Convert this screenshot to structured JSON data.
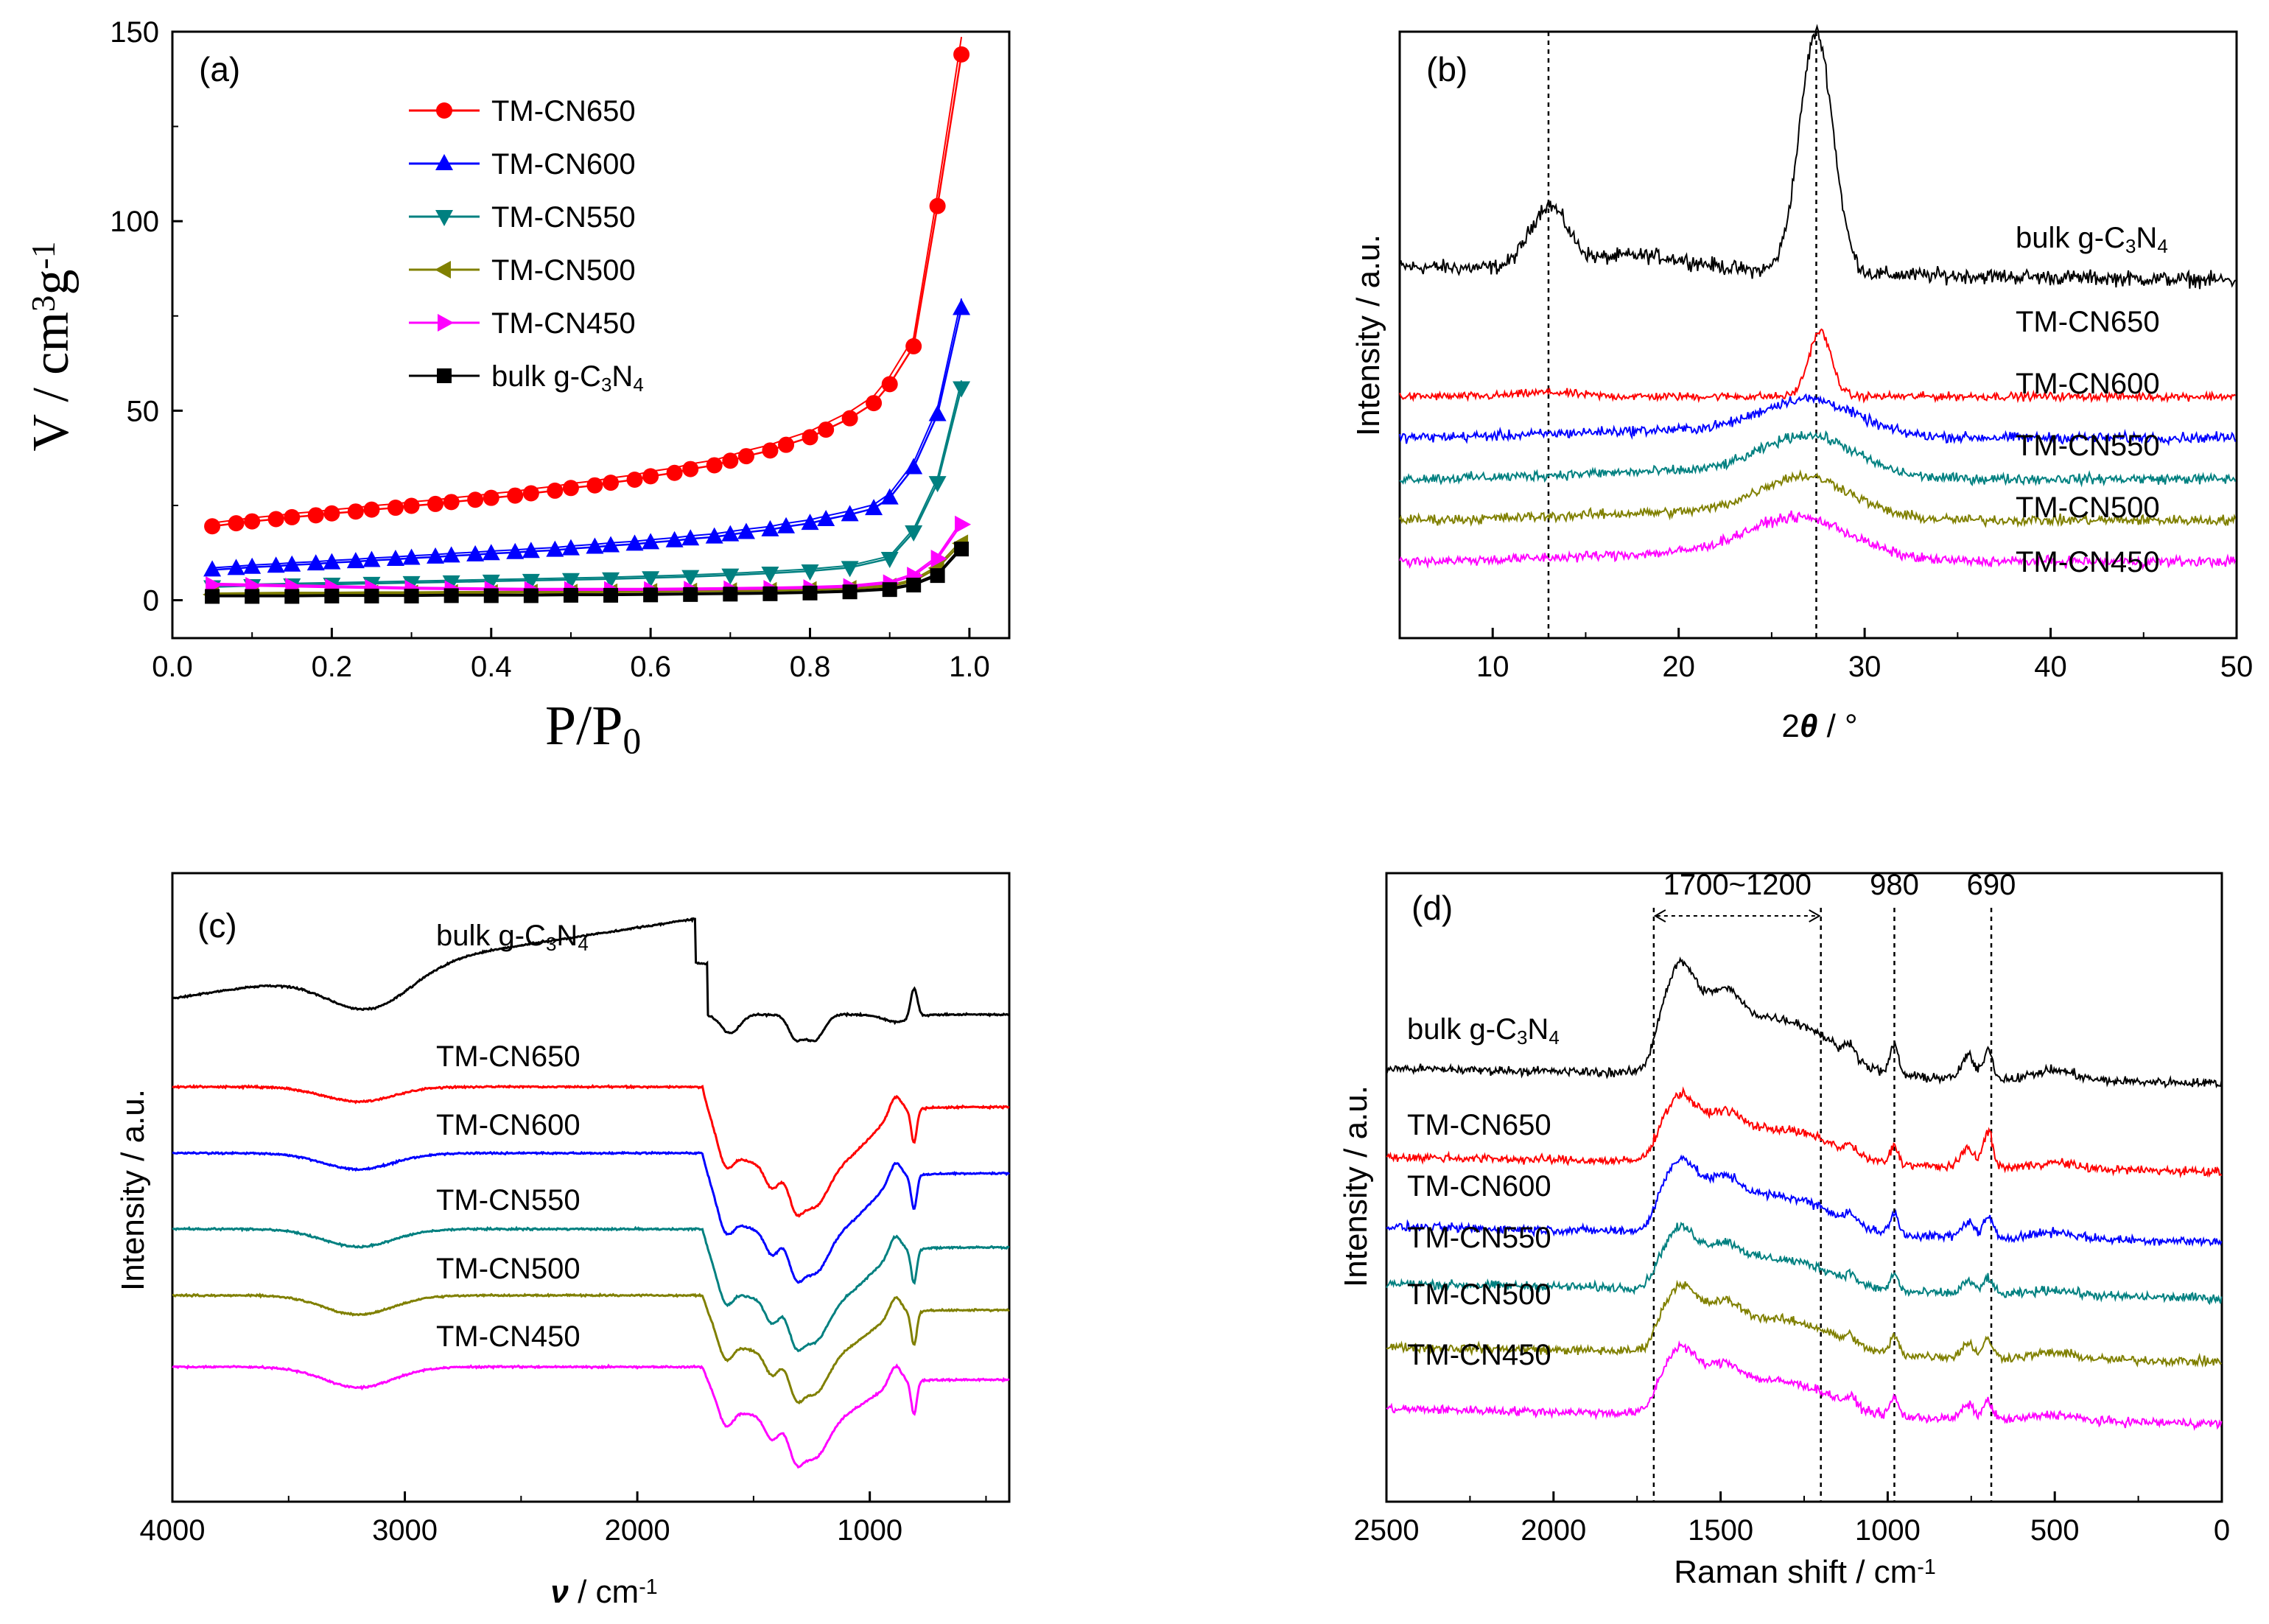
{
  "colors": {
    "TM-CN650": "#ff0000",
    "TM-CN600": "#0000ff",
    "TM-CN550": "#008080",
    "TM-CN500": "#808000",
    "TM-CN450": "#ff00ff",
    "bulk": "#000000"
  },
  "chart_data": [
    {
      "panel": "a",
      "label": "(a)",
      "type": "line",
      "xlabel": "P/P",
      "xlabel_sub": "0",
      "ylabel": "V / cm",
      "ylabel_sup1": "3",
      "ylabel_mid": "g",
      "ylabel_sup2": "-1",
      "xlim": [
        0.0,
        1.05
      ],
      "ylim": [
        -10,
        150
      ],
      "xticks": [
        "0.0",
        "0.2",
        "0.4",
        "0.6",
        "0.8",
        "1.0"
      ],
      "yticks": [
        "0",
        "50",
        "100",
        "150"
      ],
      "legend_position": "top-center",
      "series": [
        {
          "name": "TM-CN650",
          "marker": "circle",
          "x": [
            0.05,
            0.08,
            0.1,
            0.13,
            0.15,
            0.18,
            0.2,
            0.23,
            0.25,
            0.28,
            0.3,
            0.33,
            0.35,
            0.38,
            0.4,
            0.43,
            0.45,
            0.48,
            0.5,
            0.53,
            0.55,
            0.58,
            0.6,
            0.63,
            0.65,
            0.68,
            0.7,
            0.72,
            0.75,
            0.77,
            0.8,
            0.82,
            0.85,
            0.88,
            0.9,
            0.93,
            0.96,
            0.99
          ],
          "y": [
            19.5,
            20.3,
            20.8,
            21.4,
            21.9,
            22.4,
            22.9,
            23.4,
            23.9,
            24.4,
            24.9,
            25.4,
            25.9,
            26.5,
            27,
            27.6,
            28.2,
            28.9,
            29.6,
            30.3,
            31,
            31.8,
            32.7,
            33.6,
            34.6,
            35.6,
            36.8,
            38,
            39.5,
            41,
            43,
            45,
            48,
            52,
            57,
            67,
            104,
            144
          ]
        },
        {
          "name": "TM-CN600",
          "marker": "triangle-up",
          "x": [
            0.05,
            0.08,
            0.1,
            0.13,
            0.15,
            0.18,
            0.2,
            0.23,
            0.25,
            0.28,
            0.3,
            0.33,
            0.35,
            0.38,
            0.4,
            0.43,
            0.45,
            0.48,
            0.5,
            0.53,
            0.55,
            0.58,
            0.6,
            0.63,
            0.65,
            0.68,
            0.7,
            0.72,
            0.75,
            0.77,
            0.8,
            0.82,
            0.85,
            0.88,
            0.9,
            0.93,
            0.96,
            0.99
          ],
          "y": [
            8,
            8.4,
            8.7,
            9,
            9.3,
            9.6,
            9.9,
            10.2,
            10.5,
            10.8,
            11.1,
            11.4,
            11.7,
            12,
            12.3,
            12.6,
            12.9,
            13.2,
            13.6,
            14,
            14.4,
            14.8,
            15.2,
            15.7,
            16.2,
            16.7,
            17.3,
            17.9,
            18.6,
            19.4,
            20.3,
            21.3,
            22.6,
            24.2,
            27,
            35,
            49,
            77
          ]
        },
        {
          "name": "TM-CN550",
          "marker": "triangle-down",
          "x": [
            0.05,
            0.1,
            0.15,
            0.2,
            0.25,
            0.3,
            0.35,
            0.4,
            0.45,
            0.5,
            0.55,
            0.6,
            0.65,
            0.7,
            0.75,
            0.8,
            0.85,
            0.9,
            0.93,
            0.96,
            0.99
          ],
          "y": [
            3.5,
            3.8,
            4,
            4.2,
            4.4,
            4.6,
            4.8,
            5,
            5.2,
            5.4,
            5.6,
            5.9,
            6.2,
            6.6,
            7.1,
            7.7,
            8.6,
            11,
            18,
            31,
            56
          ]
        },
        {
          "name": "TM-CN500",
          "marker": "triangle-left",
          "x": [
            0.05,
            0.1,
            0.15,
            0.2,
            0.25,
            0.3,
            0.35,
            0.4,
            0.45,
            0.5,
            0.55,
            0.6,
            0.65,
            0.7,
            0.75,
            0.8,
            0.85,
            0.9,
            0.93,
            0.96,
            0.99
          ],
          "y": [
            1.5,
            1.6,
            1.7,
            1.7,
            1.8,
            1.8,
            1.9,
            1.9,
            2,
            2,
            2.1,
            2.2,
            2.3,
            2.4,
            2.5,
            2.7,
            3,
            3.6,
            5,
            8.5,
            15
          ]
        },
        {
          "name": "TM-CN450",
          "marker": "triangle-right",
          "x": [
            0.05,
            0.1,
            0.15,
            0.2,
            0.25,
            0.3,
            0.35,
            0.4,
            0.45,
            0.5,
            0.55,
            0.6,
            0.65,
            0.7,
            0.75,
            0.8,
            0.85,
            0.9,
            0.93,
            0.96,
            0.99
          ],
          "y": [
            4,
            3.8,
            3.6,
            3.4,
            3.2,
            3,
            2.9,
            2.8,
            2.7,
            2.7,
            2.7,
            2.7,
            2.8,
            2.9,
            3,
            3.2,
            3.5,
            4.5,
            6.5,
            11,
            20
          ]
        },
        {
          "name": "bulk g-C₃N₄",
          "legend_main": "bulk g-C",
          "legend_sub1": "3",
          "legend_mid": "N",
          "legend_sub2": "4",
          "marker": "square",
          "x": [
            0.05,
            0.1,
            0.15,
            0.2,
            0.25,
            0.3,
            0.35,
            0.4,
            0.45,
            0.5,
            0.55,
            0.6,
            0.65,
            0.7,
            0.75,
            0.8,
            0.85,
            0.9,
            0.93,
            0.96,
            0.99
          ],
          "y": [
            1,
            1,
            1,
            1.1,
            1.1,
            1.1,
            1.2,
            1.2,
            1.2,
            1.3,
            1.3,
            1.4,
            1.5,
            1.6,
            1.7,
            1.9,
            2.2,
            2.8,
            4,
            6.5,
            13.5
          ]
        }
      ]
    },
    {
      "panel": "b",
      "label": "(b)",
      "type": "line",
      "xlabel": "2θ / °",
      "ylabel": "Intensity / a.u.",
      "xlim": [
        5,
        50
      ],
      "xticks": [
        "10",
        "20",
        "30",
        "40",
        "50"
      ],
      "reference_lines_x": [
        13.0,
        27.4
      ],
      "series": [
        {
          "name": "bulk g-C₃N₄",
          "label_main": "bulk g-C",
          "label_sub1": "3",
          "label_mid": "N",
          "label_sub2": "4",
          "baseline": 6.0,
          "peaks": [
            [
              13.0,
              1.2,
              1.0
            ],
            [
              27.4,
              4.8,
              0.9
            ],
            [
              18,
              0.3,
              3
            ]
          ],
          "noise": 0.15
        },
        {
          "name": "TM-CN650",
          "baseline": 5.0,
          "peaks": [
            [
              27.6,
              1.3,
              0.6
            ],
            [
              13.0,
              0.08,
              1.5
            ]
          ],
          "noise": 0.08
        },
        {
          "name": "TM-CN600",
          "baseline": 4.0,
          "peaks": [
            [
              27.0,
              0.7,
              2.5
            ],
            [
              20,
              0.15,
              6
            ]
          ],
          "noise": 0.1
        },
        {
          "name": "TM-CN550",
          "baseline": 3.0,
          "peaks": [
            [
              27.0,
              0.8,
              2.5
            ],
            [
              20,
              0.15,
              6
            ]
          ],
          "noise": 0.1
        },
        {
          "name": "TM-CN500",
          "baseline": 2.0,
          "peaks": [
            [
              26.8,
              0.8,
              2.5
            ],
            [
              20,
              0.15,
              6
            ]
          ],
          "noise": 0.1
        },
        {
          "name": "TM-CN450",
          "baseline": 1.0,
          "peaks": [
            [
              26.5,
              0.8,
              2.8
            ],
            [
              20,
              0.15,
              6
            ]
          ],
          "noise": 0.1
        }
      ]
    },
    {
      "panel": "c",
      "label": "(c)",
      "type": "line",
      "xlabel": "ν",
      "xlabel_unit": " / cm",
      "xlabel_sup": "-1",
      "ylabel": "Intensity / a.u.",
      "xlim": [
        4000,
        400
      ],
      "xticks": [
        "4000",
        "3000",
        "2000",
        "1000"
      ],
      "series": [
        {
          "name": "bulk g-C₃N₄",
          "label_main": "bulk g-C",
          "label_sub1": "3",
          "label_mid": "N",
          "label_sub2": "4",
          "baseline": 5.6
        },
        {
          "name": "TM-CN650",
          "baseline": 4.4
        },
        {
          "name": "TM-CN600",
          "baseline": 3.4
        },
        {
          "name": "TM-CN550",
          "baseline": 2.3
        },
        {
          "name": "TM-CN500",
          "baseline": 1.3
        },
        {
          "name": "TM-CN450",
          "baseline": 0.3
        }
      ]
    },
    {
      "panel": "d",
      "label": "(d)",
      "type": "line",
      "xlabel": "Raman shift / cm",
      "xlabel_sup": "-1",
      "ylabel": "Intensity / a.u.",
      "xlim": [
        2500,
        0
      ],
      "xticks": [
        "2500",
        "2000",
        "1500",
        "1000",
        "500",
        "0"
      ],
      "reference_lines_x": [
        1700,
        1200,
        980,
        690
      ],
      "annotations": [
        "1700~1200",
        "980",
        "690"
      ],
      "series": [
        {
          "name": "bulk g-C₃N₄",
          "label_main": "bulk g-C",
          "label_sub1": "3",
          "label_mid": "N",
          "label_sub2": "4",
          "baseline": 5.3
        },
        {
          "name": "TM-CN650",
          "baseline": 4.3
        },
        {
          "name": "TM-CN600",
          "baseline": 3.4
        },
        {
          "name": "TM-CN550",
          "baseline": 2.6
        },
        {
          "name": "TM-CN500",
          "baseline": 1.7
        },
        {
          "name": "TM-CN450",
          "baseline": 0.8
        }
      ]
    }
  ]
}
